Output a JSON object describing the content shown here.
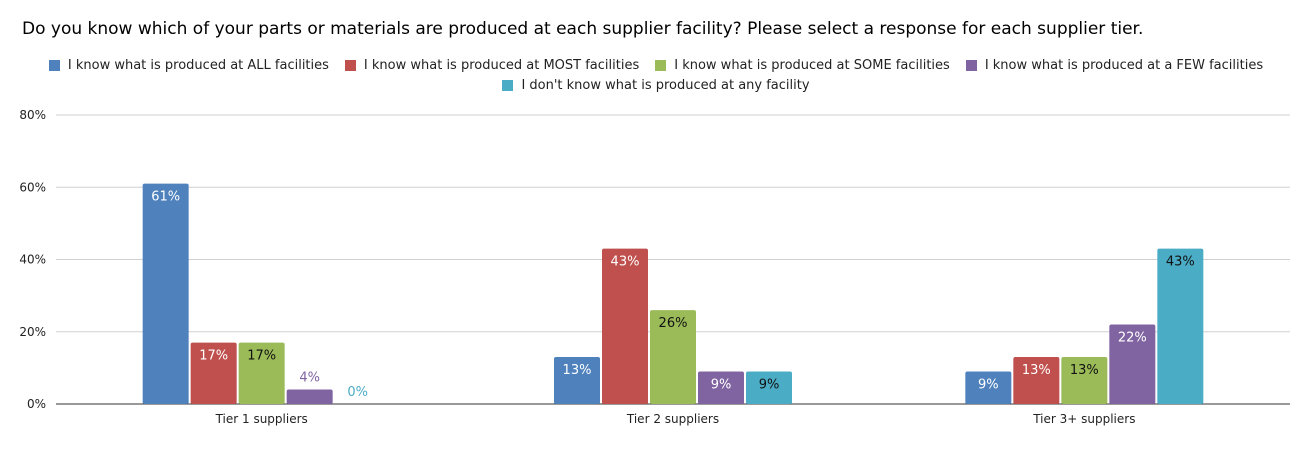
{
  "chart_data": {
    "type": "bar",
    "title": "Do you know which of your parts or materials are produced at each supplier facility? Please select a response for each supplier tier.",
    "categories": [
      "Tier 1 suppliers",
      "Tier 2 suppliers",
      "Tier 3+ suppliers"
    ],
    "series": [
      {
        "name": "I know what is produced at ALL facilities",
        "color": "#4f81bd",
        "values": [
          61,
          13,
          9
        ],
        "labels": [
          "61%",
          "13%",
          "9%"
        ]
      },
      {
        "name": "I know what is produced at MOST facilities",
        "color": "#c0504d",
        "values": [
          17,
          43,
          13
        ],
        "labels": [
          "17%",
          "43%",
          "13%"
        ]
      },
      {
        "name": "I know what is produced at SOME facilities",
        "color": "#9bbb59",
        "values": [
          17,
          26,
          13
        ],
        "labels": [
          "17%",
          "26%",
          "13%"
        ]
      },
      {
        "name": "I know what is produced at a FEW facilities",
        "color": "#8064a2",
        "values": [
          4,
          9,
          22
        ],
        "labels": [
          "4%",
          "9%",
          "22%"
        ]
      },
      {
        "name": "I don't know what is produced at any facility",
        "color": "#4bacc6",
        "values": [
          0,
          9,
          43
        ],
        "labels": [
          "0%",
          "9%",
          "43%"
        ]
      }
    ],
    "yticks": [
      "0%",
      "20%",
      "40%",
      "60%",
      "80%"
    ],
    "ylim": [
      0,
      80
    ],
    "grid": true,
    "legend": "top"
  }
}
